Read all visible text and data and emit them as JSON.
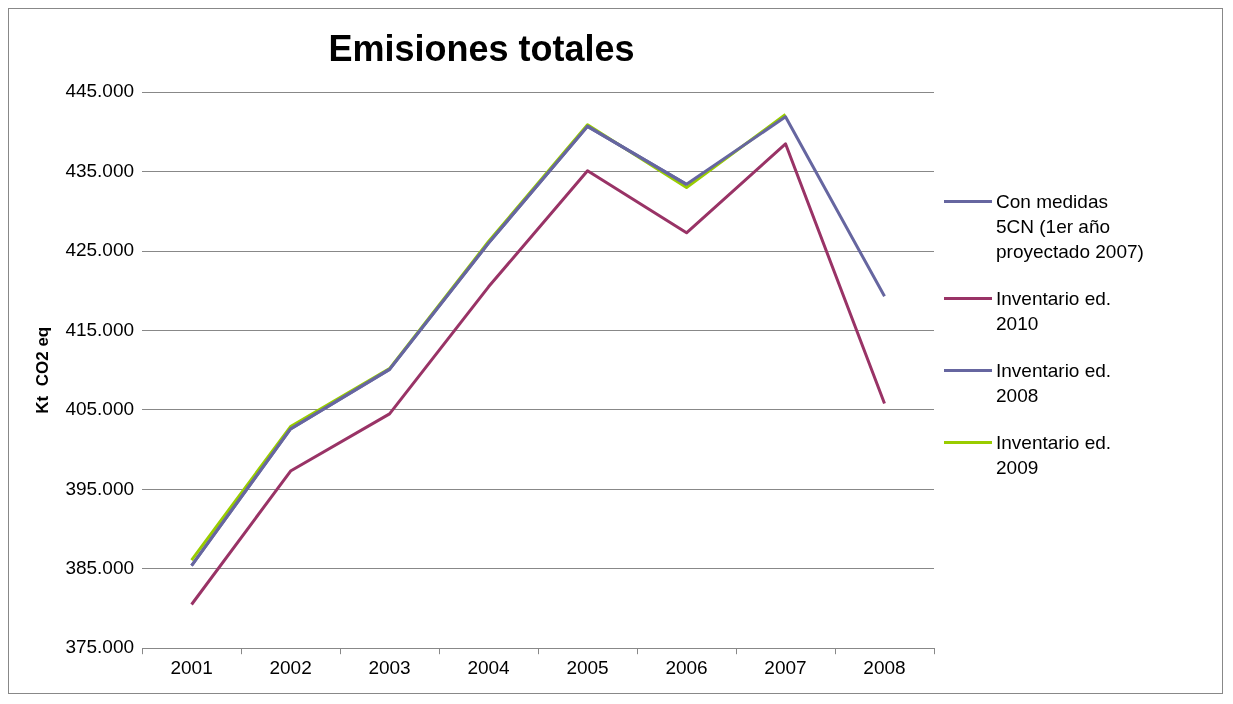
{
  "chart_data": {
    "type": "line",
    "title": "Emisiones totales",
    "ylabel": "Kt  CO2 eq",
    "categories": [
      "2001",
      "2002",
      "2003",
      "2004",
      "2005",
      "2006",
      "2007",
      "2008"
    ],
    "series": [
      {
        "name": "Con medidas 5CN (1er año proyectado 2007)",
        "color": "#6666a0",
        "values": [
          385400,
          402600,
          410100,
          426000,
          440700,
          433400,
          441900,
          419300
        ]
      },
      {
        "name": "Inventario ed. 2010",
        "color": "#993366",
        "values": [
          380500,
          397300,
          404500,
          420500,
          435100,
          427300,
          438500,
          405800
        ]
      },
      {
        "name": "Inventario ed. 2008",
        "color": "#6666a0",
        "values": [
          385400,
          402600,
          410100,
          426000,
          440700,
          433400,
          null,
          null
        ]
      },
      {
        "name": "Inventario ed. 2009",
        "color": "#99cc00",
        "values": [
          386100,
          402900,
          410200,
          426200,
          440900,
          433000,
          442200,
          null
        ]
      }
    ],
    "ylim": [
      375000,
      445000
    ],
    "yticks": [
      {
        "value": 375000,
        "label": "375.000"
      },
      {
        "value": 385000,
        "label": "385.000"
      },
      {
        "value": 395000,
        "label": "395.000"
      },
      {
        "value": 405000,
        "label": "405.000"
      },
      {
        "value": 415000,
        "label": "415.000"
      },
      {
        "value": 425000,
        "label": "425.000"
      },
      {
        "value": 435000,
        "label": "435.000"
      },
      {
        "value": 445000,
        "label": "445.000"
      }
    ],
    "grid": "y",
    "legend": "right",
    "marker": "none",
    "line_style": "solid"
  }
}
